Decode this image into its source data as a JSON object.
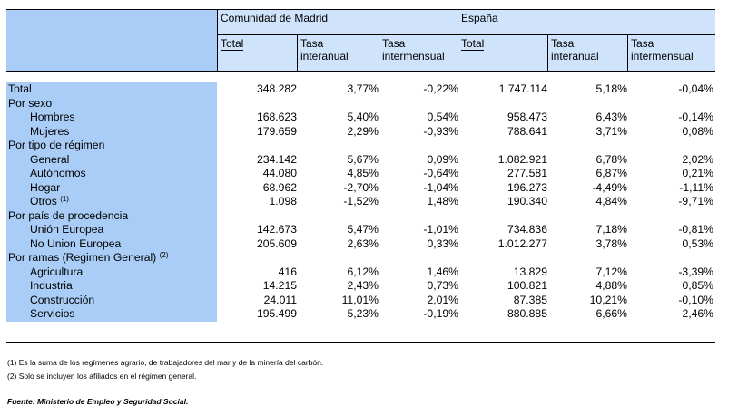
{
  "header": {
    "group1": "Comunidad de Madrid",
    "group2": "España",
    "cols": [
      {
        "line1": "Total",
        "line2": ""
      },
      {
        "line1": "Tasa",
        "line2": "interanual"
      },
      {
        "line1": "Tasa",
        "line2": "intermensual"
      },
      {
        "line1": "Total",
        "line2": ""
      },
      {
        "line1": "Tasa",
        "line2": "interanual"
      },
      {
        "line1": "Tasa",
        "line2": "intermensual"
      }
    ]
  },
  "rows": [
    {
      "label": "Total",
      "sup": "",
      "indent": false,
      "v": [
        "348.282",
        "3,77%",
        "-0,22%",
        "1.747.114",
        "5,18%",
        "-0,04%"
      ]
    },
    {
      "label": "Por sexo",
      "sup": "",
      "indent": false,
      "v": [
        "",
        "",
        "",
        "",
        "",
        ""
      ]
    },
    {
      "label": "Hombres",
      "sup": "",
      "indent": true,
      "v": [
        "168.623",
        "5,40%",
        "0,54%",
        "958.473",
        "6,43%",
        "-0,14%"
      ]
    },
    {
      "label": "Mujeres",
      "sup": "",
      "indent": true,
      "v": [
        "179.659",
        "2,29%",
        "-0,93%",
        "788.641",
        "3,71%",
        "0,08%"
      ]
    },
    {
      "label": "Por tipo de régimen",
      "sup": "",
      "indent": false,
      "v": [
        "",
        "",
        "",
        "",
        "",
        ""
      ]
    },
    {
      "label": "General",
      "sup": "",
      "indent": true,
      "v": [
        "234.142",
        "5,67%",
        "0,09%",
        "1.082.921",
        "6,78%",
        "2,02%"
      ]
    },
    {
      "label": "Autónomos",
      "sup": "",
      "indent": true,
      "v": [
        "44.080",
        "4,85%",
        "-0,64%",
        "277.581",
        "6,87%",
        "0,21%"
      ]
    },
    {
      "label": "Hogar",
      "sup": "",
      "indent": true,
      "v": [
        "68.962",
        "-2,70%",
        "-1,04%",
        "196.273",
        "-4,49%",
        "-1,11%"
      ]
    },
    {
      "label": "Otros",
      "sup": "(1)",
      "indent": true,
      "v": [
        "1.098",
        "-1,52%",
        "1,48%",
        "190.340",
        "4,84%",
        "-9,71%"
      ]
    },
    {
      "label": "Por país de procedencia",
      "sup": "",
      "indent": false,
      "v": [
        "",
        "",
        "",
        "",
        "",
        ""
      ]
    },
    {
      "label": "Unión Europea",
      "sup": "",
      "indent": true,
      "v": [
        "142.673",
        "5,47%",
        "-1,01%",
        "734.836",
        "7,18%",
        "-0,81%"
      ]
    },
    {
      "label": "No Union Europea",
      "sup": "",
      "indent": true,
      "v": [
        "205.609",
        "2,63%",
        "0,33%",
        "1.012.277",
        "3,78%",
        "0,53%"
      ]
    },
    {
      "label": "Por ramas (Regimen General)",
      "sup": "(2)",
      "indent": false,
      "v": [
        "",
        "",
        "",
        "",
        "",
        ""
      ]
    },
    {
      "label": "Agricultura",
      "sup": "",
      "indent": true,
      "v": [
        "416",
        "6,12%",
        "1,46%",
        "13.829",
        "7,12%",
        "-3,39%"
      ]
    },
    {
      "label": "Industria",
      "sup": "",
      "indent": true,
      "v": [
        "14.215",
        "2,43%",
        "0,73%",
        "100.821",
        "4,88%",
        "0,85%"
      ]
    },
    {
      "label": "Construcción",
      "sup": "",
      "indent": true,
      "v": [
        "24.011",
        "11,01%",
        "2,01%",
        "87.385",
        "10,21%",
        "-0,10%"
      ]
    },
    {
      "label": "Servicios",
      "sup": "",
      "indent": true,
      "v": [
        "195.499",
        "5,23%",
        "-0,19%",
        "880.885",
        "6,66%",
        "2,46%"
      ]
    }
  ],
  "notes": [
    "(1) Es la suma de los regímenes  agrario, de trabajadores del mar y de la minería del carbón.",
    "(2) Solo se incluyen los afiliados en el régimen general."
  ],
  "source": "Fuente: Ministerio de Empleo y Seguridad Social.",
  "colors": {
    "label_bg": "#a9cdf6",
    "header_bg": "#cfe3fb"
  }
}
